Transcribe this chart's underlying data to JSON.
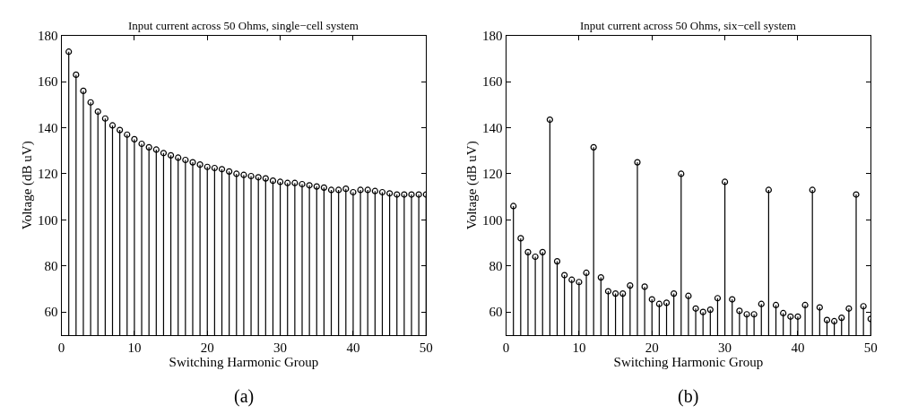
{
  "chart_data": [
    {
      "type": "lollipop",
      "title": "Input current across 50 Ohms, single−cell system",
      "xlabel": "Switching Harmonic Group",
      "ylabel": "Voltage (dB uV)",
      "x": [
        1,
        2,
        3,
        4,
        5,
        6,
        7,
        8,
        9,
        10,
        11,
        12,
        13,
        14,
        15,
        16,
        17,
        18,
        19,
        20,
        21,
        22,
        23,
        24,
        25,
        26,
        27,
        28,
        29,
        30,
        31,
        32,
        33,
        34,
        35,
        36,
        37,
        38,
        39,
        40,
        41,
        42,
        43,
        44,
        45,
        46,
        47,
        48,
        49,
        50
      ],
      "values": [
        173,
        163,
        156,
        151,
        147,
        144,
        141,
        139,
        137,
        135,
        133,
        131.5,
        130.5,
        129,
        128,
        127,
        126,
        125,
        124,
        123,
        122.5,
        122,
        121,
        120,
        119.5,
        119,
        118.5,
        118,
        117,
        116.5,
        116,
        116,
        115.5,
        115,
        114.5,
        114,
        113,
        113,
        113.5,
        112,
        113,
        113,
        112.5,
        112,
        111.5,
        111,
        111,
        111,
        111,
        111
      ],
      "color": "#000000",
      "marker": "circle",
      "xlim": [
        0,
        50
      ],
      "ylim": [
        50,
        180
      ],
      "xticks": [
        0,
        10,
        20,
        30,
        40,
        50
      ],
      "yticks": [
        60,
        80,
        100,
        120,
        140,
        160,
        180
      ],
      "annotations": [
        "(a)"
      ]
    },
    {
      "type": "lollipop",
      "title": "Input current across 50 Ohms, six−cell system",
      "xlabel": "Switching Harmonic Group",
      "ylabel": "Voltage (dB uV)",
      "x": [
        1,
        2,
        3,
        4,
        5,
        6,
        7,
        8,
        9,
        10,
        11,
        12,
        13,
        14,
        15,
        16,
        17,
        18,
        19,
        20,
        21,
        22,
        23,
        24,
        25,
        26,
        27,
        28,
        29,
        30,
        31,
        32,
        33,
        34,
        35,
        36,
        37,
        38,
        39,
        40,
        41,
        42,
        43,
        44,
        45,
        46,
        47,
        48,
        49,
        50
      ],
      "values": [
        106,
        92,
        86,
        84,
        86,
        143.5,
        82,
        76,
        74,
        73,
        77,
        131.5,
        75,
        69,
        68,
        68,
        71.5,
        125,
        71,
        65.5,
        63.5,
        64,
        68,
        120,
        67,
        61.5,
        60,
        61,
        66,
        116.5,
        65.5,
        60.5,
        59,
        59,
        63.5,
        113,
        63,
        59.5,
        58,
        58,
        63,
        113,
        62,
        56.5,
        56,
        57.5,
        61.5,
        111,
        62.5,
        57
      ],
      "color": "#000000",
      "marker": "circle",
      "xlim": [
        0,
        50
      ],
      "ylim": [
        50,
        180
      ],
      "xticks": [
        0,
        10,
        20,
        30,
        40,
        50
      ],
      "yticks": [
        60,
        80,
        100,
        120,
        140,
        160,
        180
      ],
      "annotations": [
        "(b)"
      ]
    }
  ]
}
